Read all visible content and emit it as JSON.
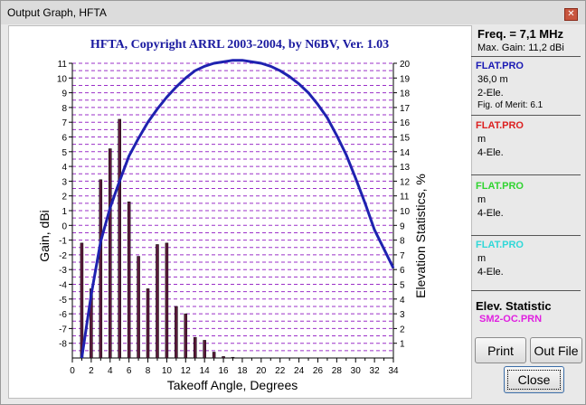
{
  "window": {
    "title": "Output Graph, HFTA"
  },
  "graph": {
    "title": "HFTA, Copyright ARRL 2003-2004, by N6BV, Ver. 1.03",
    "title_color": "#1a1aa0",
    "background": "#ffffff",
    "grid_color": "#9b30c8",
    "bar_color": "#5a1a3a",
    "curve_color": "#1f22b0"
  },
  "chart_data": {
    "type": "bar",
    "title": "HFTA, Copyright ARRL 2003-2004, by N6BV, Ver. 1.03",
    "xlabel": "Takeoff Angle, Degrees",
    "ylabel": "Gain, dBi",
    "y2label": "Elevation Statistics, %",
    "xlim": [
      0,
      34
    ],
    "ylim": [
      -9,
      11
    ],
    "y2lim": [
      0,
      20
    ],
    "xticks": [
      "0",
      "2",
      "4",
      "6",
      "8",
      "10",
      "12",
      "14",
      "16",
      "18",
      "20",
      "22",
      "24",
      "26",
      "28",
      "30",
      "32",
      "34"
    ],
    "yticks": [
      "11",
      "10",
      "9",
      "8",
      "7",
      "6",
      "5",
      "4",
      "3",
      "2",
      "1",
      "0",
      "-1",
      "-2",
      "-3",
      "-4",
      "-5",
      "-6",
      "-7",
      "-8"
    ],
    "y2ticks": [
      "20",
      "19",
      "18",
      "17",
      "16",
      "15",
      "14",
      "13",
      "12",
      "11",
      "10",
      "9",
      "8",
      "7",
      "6",
      "5",
      "4",
      "3",
      "2",
      "1"
    ],
    "grid": true,
    "series": [
      {
        "type": "bar",
        "axis": "right",
        "x": [
          1,
          2,
          3,
          4,
          5,
          6,
          7,
          8,
          9,
          10,
          11,
          12,
          13,
          14,
          15,
          16,
          17
        ],
        "values": [
          7.8,
          4.7,
          12.1,
          14.2,
          16.2,
          10.6,
          6.9,
          4.7,
          7.7,
          7.8,
          3.5,
          3.0,
          1.4,
          1.2,
          0.4,
          0.1,
          0.05
        ]
      },
      {
        "type": "line",
        "axis": "left",
        "x": [
          1,
          2,
          3,
          4,
          5,
          6,
          7,
          8,
          9,
          10,
          11,
          12,
          13,
          14,
          15,
          16,
          17,
          18,
          19,
          20,
          21,
          22,
          23,
          24,
          25,
          26,
          27,
          28,
          29,
          30,
          31,
          32,
          33,
          34
        ],
        "values": [
          -9,
          -4.7,
          -1.1,
          1.2,
          3.0,
          4.7,
          5.9,
          7.0,
          7.9,
          8.7,
          9.4,
          10.0,
          10.5,
          10.8,
          11.0,
          11.1,
          11.2,
          11.2,
          11.1,
          11.0,
          10.8,
          10.5,
          10.1,
          9.6,
          9.0,
          8.2,
          7.3,
          6.1,
          4.8,
          3.2,
          1.5,
          -0.3,
          -1.6,
          -2.9
        ]
      }
    ]
  },
  "sidebar": {
    "freq": "Freq. = 7,1 MHz",
    "max_gain": "Max. Gain: 11,2 dBi",
    "groups": [
      {
        "name": "FLAT.PRO",
        "color": "#1a1ab4",
        "lines": [
          "36,0 m",
          "2-Ele.",
          "Fig. of Merit:  6.1"
        ]
      },
      {
        "name": "FLAT.PRO",
        "color": "#dc2020",
        "lines": [
          " m",
          "4-Ele."
        ]
      },
      {
        "name": "FLAT.PRO",
        "color": "#30d430",
        "lines": [
          " m",
          "4-Ele."
        ]
      },
      {
        "name": "FLAT.PRO",
        "color": "#30d8d8",
        "lines": [
          " m",
          "4-Ele."
        ]
      }
    ],
    "elev_title": "Elev.  Statistic",
    "elev_file": "SM2-OC.PRN",
    "elev_file_color": "#e020e0"
  },
  "buttons": {
    "print": "Print",
    "out_file": "Out File",
    "close": "Close"
  }
}
